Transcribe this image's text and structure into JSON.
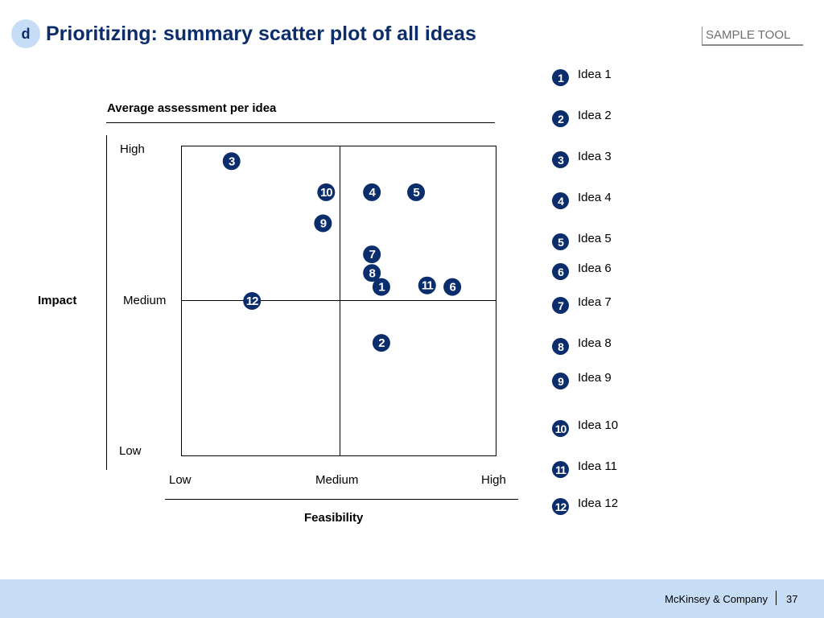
{
  "header": {
    "badge": "d",
    "title": "Prioritizing: summary scatter plot of all ideas",
    "tag": "SAMPLE TOOL"
  },
  "chart_data": {
    "type": "scatter",
    "title": "Average assessment per idea",
    "xlabel": "Feasibility",
    "ylabel": "Impact",
    "x_ticks": [
      "Low",
      "Medium",
      "High"
    ],
    "y_ticks": [
      "High",
      "Medium",
      "Low"
    ],
    "xlim": [
      0,
      2
    ],
    "ylim": [
      0,
      2
    ],
    "quadrant_lines": true,
    "points": [
      {
        "label": "1",
        "x": 1.27,
        "y": 1.09
      },
      {
        "label": "2",
        "x": 1.27,
        "y": 0.73
      },
      {
        "label": "3",
        "x": 0.32,
        "y": 1.9
      },
      {
        "label": "4",
        "x": 1.21,
        "y": 1.7
      },
      {
        "label": "5",
        "x": 1.49,
        "y": 1.7
      },
      {
        "label": "6",
        "x": 1.72,
        "y": 1.09
      },
      {
        "label": "7",
        "x": 1.21,
        "y": 1.3
      },
      {
        "label": "8",
        "x": 1.21,
        "y": 1.18
      },
      {
        "label": "9",
        "x": 0.9,
        "y": 1.5
      },
      {
        "label": "10",
        "x": 0.92,
        "y": 1.7
      },
      {
        "label": "11",
        "x": 1.56,
        "y": 1.1
      },
      {
        "label": "12",
        "x": 0.45,
        "y": 1.0
      }
    ]
  },
  "legend": {
    "items": [
      {
        "num": "1",
        "label": "Idea 1"
      },
      {
        "num": "2",
        "label": "Idea 2"
      },
      {
        "num": "3",
        "label": "Idea 3"
      },
      {
        "num": "4",
        "label": "Idea 4"
      },
      {
        "num": "5",
        "label": "Idea 5"
      },
      {
        "num": "6",
        "label": "Idea 6"
      },
      {
        "num": "7",
        "label": "Idea 7"
      },
      {
        "num": "8",
        "label": "Idea 8"
      },
      {
        "num": "9",
        "label": "Idea 9"
      },
      {
        "num": "10",
        "label": "Idea 10"
      },
      {
        "num": "11",
        "label": "Idea 11"
      },
      {
        "num": "12",
        "label": "Idea 12"
      }
    ]
  },
  "footer": {
    "company": "McKinsey & Company",
    "page": "37"
  },
  "colors": {
    "marker": "#0b2d6b",
    "title": "#0b2d6b",
    "footer_bg": "#c7ddf5"
  }
}
